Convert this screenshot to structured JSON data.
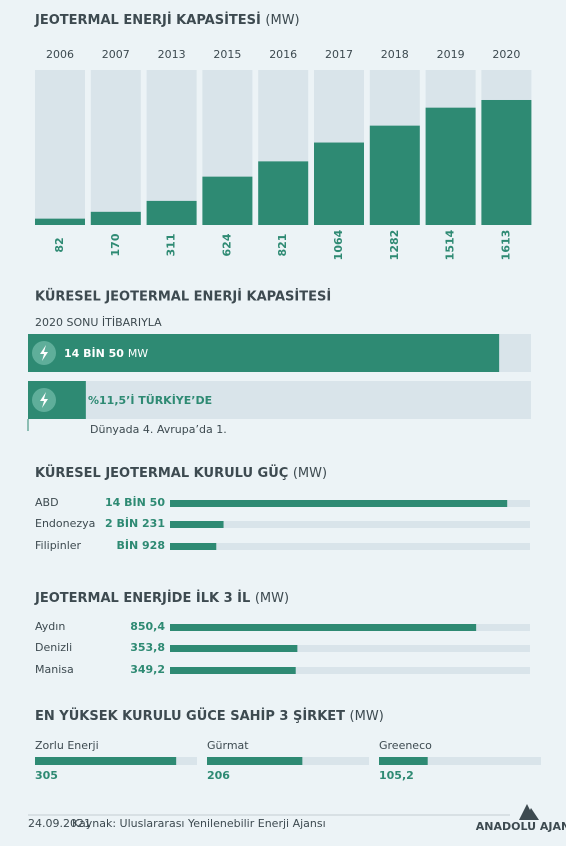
{
  "capacity": {
    "type": "bar",
    "title": "JEOTERMAL ENERJİ KAPASİTESİ",
    "unit": "(MW)",
    "categories": [
      "2006",
      "2007",
      "2013",
      "2015",
      "2016",
      "2017",
      "2018",
      "2019",
      "2020"
    ],
    "values": [
      82,
      170,
      311,
      624,
      821,
      1064,
      1282,
      1514,
      1613
    ],
    "ylim": [
      0,
      2000
    ],
    "color": "#2e8a73"
  },
  "global": {
    "title": "KÜRESEL JEOTERMAL ENERJİ KAPASİTESİ",
    "subtitle": "2020 SONU İTİBARIYLA",
    "items": [
      {
        "value": 14050,
        "label": "14 BİN 50",
        "unit": "MW",
        "xlim": [
          0,
          15000
        ]
      },
      {
        "value": 11.5,
        "label": "%11,5’İ TÜRKİYE’DE",
        "xlim": [
          0,
          100
        ]
      }
    ],
    "note": "Dünyada 4. Avrupa’da 1.",
    "color": "#2e8a73"
  },
  "installed": {
    "type": "bar",
    "title": "KÜRESEL JEOTERMAL KURULU GÜÇ",
    "unit": "(MW)",
    "categories": [
      "ABD",
      "Endonezya",
      "Filipinler"
    ],
    "values": [
      14050,
      2231,
      1928
    ],
    "value_labels": [
      "14 BİN 50",
      "2 BİN 231",
      "BİN 928"
    ],
    "xlim": [
      0,
      15000
    ],
    "color": "#2e8a73"
  },
  "provinces": {
    "type": "bar",
    "title": "JEOTERMAL ENERJİDE İLK 3 İL",
    "unit": "(MW)",
    "categories": [
      "Aydın",
      "Denizli",
      "Manisa"
    ],
    "values": [
      850.4,
      353.8,
      349.2
    ],
    "value_labels": [
      "850,4",
      "353,8",
      "349,2"
    ],
    "xlim": [
      0,
      1000
    ],
    "color": "#2e8a73"
  },
  "companies": {
    "type": "bar",
    "title": "EN YÜKSEK KURULU GÜCE SAHİP 3 ŞİRKET",
    "unit": "(MW)",
    "categories": [
      "Zorlu Enerji",
      "Gürmat",
      "Greeneco"
    ],
    "values": [
      305,
      206,
      105.2
    ],
    "value_labels": [
      "305",
      "206",
      "105,2"
    ],
    "xlim": [
      0,
      350
    ],
    "color": "#2e8a73"
  },
  "footer": {
    "date": "24.09.2021",
    "source": "Kaynak: Uluslararası Yenilenebilir Enerji Ajansı",
    "logo": "ANADOLU AJANSI"
  }
}
